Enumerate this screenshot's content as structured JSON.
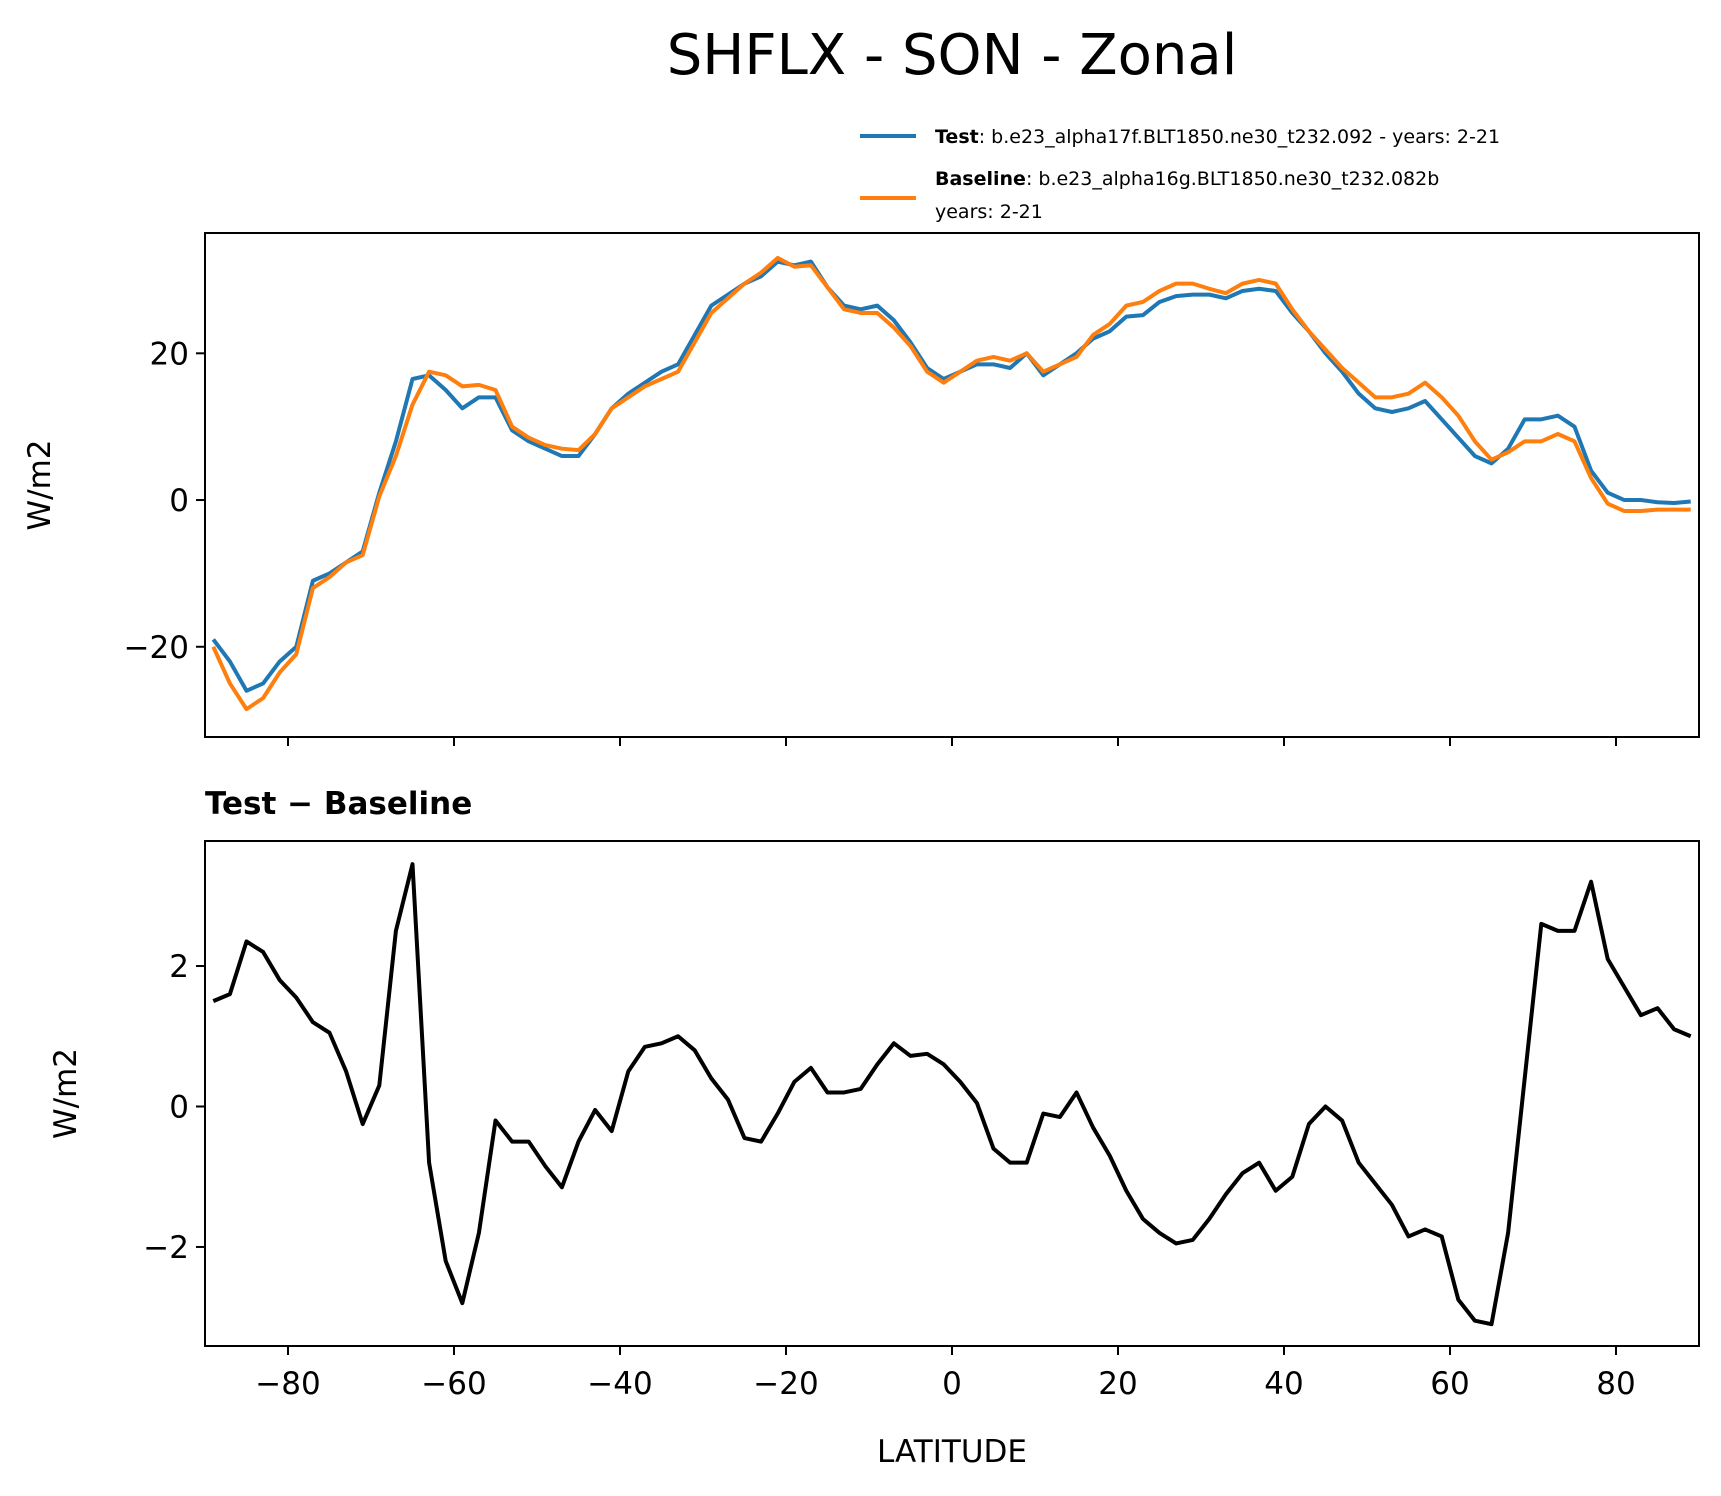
{
  "title": "SHFLX - SON - Zonal",
  "chart_data": [
    {
      "type": "line",
      "ylabel": "W/m2",
      "x": [
        -89,
        -87,
        -85,
        -83,
        -81,
        -79,
        -77,
        -75,
        -73,
        -71,
        -69,
        -67,
        -65,
        -63,
        -61,
        -59,
        -57,
        -55,
        -53,
        -51,
        -49,
        -47,
        -45,
        -43,
        -41,
        -39,
        -37,
        -35,
        -33,
        -31,
        -29,
        -27,
        -25,
        -23,
        -21,
        -19,
        -17,
        -15,
        -13,
        -11,
        -9,
        -7,
        -5,
        -3,
        -1,
        1,
        3,
        5,
        7,
        9,
        11,
        13,
        15,
        17,
        19,
        21,
        23,
        25,
        27,
        29,
        31,
        33,
        35,
        37,
        39,
        41,
        43,
        45,
        47,
        49,
        51,
        53,
        55,
        57,
        59,
        61,
        63,
        65,
        67,
        69,
        71,
        73,
        75,
        77,
        79,
        81,
        83,
        85,
        87,
        89
      ],
      "series": [
        {
          "name": "Test",
          "description": [
            ": b.e23_alpha17f.BLT1850.ne30_t232.092 - years: 2-21"
          ],
          "color": "#1f77b4",
          "values": [
            -19,
            -22,
            -26,
            -25,
            -22,
            -20,
            -11,
            -10,
            -8.5,
            -7,
            1,
            8,
            16.5,
            17,
            15,
            12.5,
            14,
            14,
            9.5,
            8,
            7,
            6,
            6,
            9,
            12.5,
            14.5,
            16,
            17.5,
            18.5,
            22.5,
            26.5,
            28,
            29.5,
            30.5,
            32.5,
            32,
            32.5,
            29,
            26.5,
            26,
            26.5,
            24.5,
            21.5,
            18,
            16.5,
            17.5,
            18.5,
            18.5,
            18,
            20,
            17,
            18.5,
            20,
            22,
            23,
            25,
            25.2,
            27,
            27.8,
            28,
            28,
            27.5,
            28.5,
            28.8,
            28.5,
            25.5,
            23,
            20,
            17.5,
            14.5,
            12.5,
            12,
            12.5,
            13.5,
            11,
            8.5,
            6,
            5,
            7,
            11,
            11,
            11.5,
            10,
            4,
            1,
            0,
            0,
            -0.3,
            -0.4,
            -0.2
          ]
        },
        {
          "name": "Baseline",
          "description": [
            ": b.e23_alpha16g.BLT1850.ne30_t232.082b",
            "years: 2-21"
          ],
          "color": "#ff7f0e",
          "values": [
            -20,
            -25,
            -28.5,
            -27,
            -23.5,
            -21,
            -12,
            -10.5,
            -8.5,
            -7.5,
            0.5,
            6,
            13,
            17.5,
            17,
            15.5,
            15.7,
            15,
            10,
            8.5,
            7.5,
            7,
            6.8,
            9,
            12.5,
            14,
            15.5,
            16.5,
            17.5,
            21.5,
            25.5,
            27.5,
            29.5,
            31,
            33,
            31.8,
            32,
            29,
            26,
            25.5,
            25.5,
            23.5,
            21,
            17.5,
            16,
            17.5,
            19,
            19.5,
            19,
            20,
            17.5,
            18.5,
            19.5,
            22.5,
            24,
            26.5,
            27,
            28.5,
            29.5,
            29.5,
            28.8,
            28.2,
            29.5,
            30,
            29.5,
            26,
            23,
            20.5,
            18,
            16,
            14,
            14,
            14.5,
            16,
            14,
            11.5,
            8,
            5.5,
            6.5,
            8,
            8,
            9,
            8,
            3,
            -0.5,
            -1.5,
            -1.5,
            -1.3,
            -1.3,
            -1.3
          ]
        }
      ],
      "xlim": [
        -90,
        90
      ],
      "xticks": [
        -80,
        -60,
        -40,
        -20,
        0,
        20,
        40,
        60,
        80
      ],
      "ylim": [
        -32.3,
        36.4
      ],
      "yticks": [
        {
          "value": -20,
          "label": "−20"
        },
        0,
        20
      ]
    },
    {
      "type": "line",
      "title": "Test − Baseline",
      "xlabel": "LATITUDE",
      "ylabel": "W/m2",
      "x": [
        -89,
        -87,
        -85,
        -83,
        -81,
        -79,
        -77,
        -75,
        -73,
        -71,
        -69,
        -67,
        -65,
        -63,
        -61,
        -59,
        -57,
        -55,
        -53,
        -51,
        -49,
        -47,
        -45,
        -43,
        -41,
        -39,
        -37,
        -35,
        -33,
        -31,
        -29,
        -27,
        -25,
        -23,
        -21,
        -19,
        -17,
        -15,
        -13,
        -11,
        -9,
        -7,
        -5,
        -3,
        -1,
        1,
        3,
        5,
        7,
        9,
        11,
        13,
        15,
        17,
        19,
        21,
        23,
        25,
        27,
        29,
        31,
        33,
        35,
        37,
        39,
        41,
        43,
        45,
        47,
        49,
        51,
        53,
        55,
        57,
        59,
        61,
        63,
        65,
        67,
        69,
        71,
        73,
        75,
        77,
        79,
        81,
        83,
        85,
        87,
        89
      ],
      "series": [
        {
          "color": "#000000",
          "values": [
            1.5,
            1.6,
            2.35,
            2.2,
            1.8,
            1.55,
            1.2,
            1.05,
            0.5,
            -0.25,
            0.3,
            2.5,
            3.45,
            -0.8,
            -2.2,
            -2.8,
            -1.8,
            -0.2,
            -0.5,
            -0.5,
            -0.85,
            -1.15,
            -0.5,
            -0.05,
            -0.35,
            0.5,
            0.85,
            0.9,
            1.0,
            0.8,
            0.4,
            0.1,
            -0.45,
            -0.5,
            -0.1,
            0.35,
            0.55,
            0.2,
            0.2,
            0.25,
            0.6,
            0.9,
            0.72,
            0.75,
            0.6,
            0.35,
            0.05,
            -0.6,
            -0.8,
            -0.8,
            -0.1,
            -0.15,
            0.2,
            -0.3,
            -0.7,
            -1.2,
            -1.6,
            -1.8,
            -1.95,
            -1.9,
            -1.6,
            -1.25,
            -0.95,
            -0.8,
            -1.2,
            -1.0,
            -0.25,
            0,
            -0.2,
            -0.8,
            -1.1,
            -1.4,
            -1.85,
            -1.75,
            -1.85,
            -2.75,
            -3.05,
            -3.1,
            -1.8,
            0.4,
            2.6,
            2.5,
            2.5,
            3.2,
            2.1,
            1.7,
            1.3,
            1.4,
            1.1,
            1.0
          ]
        }
      ],
      "xlim": [
        -90,
        90
      ],
      "xticks": [
        {
          "value": -80,
          "label": "−80"
        },
        {
          "value": -60,
          "label": "−60"
        },
        {
          "value": -40,
          "label": "−40"
        },
        {
          "value": -20,
          "label": "−20"
        },
        0,
        20,
        40,
        60,
        80
      ],
      "ylim": [
        -3.41,
        3.78
      ],
      "yticks": [
        {
          "value": -2,
          "label": "−2"
        },
        0,
        2
      ]
    }
  ]
}
